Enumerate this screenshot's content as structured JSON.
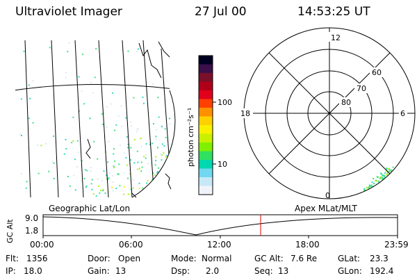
{
  "header": {
    "title": "Ultraviolet Imager",
    "date": "27 Jul 00",
    "time": "14:53:25 UT"
  },
  "colorbar": {
    "label": "photon cm⁻²s⁻¹",
    "ticks": [
      "100",
      "10"
    ],
    "colors": [
      "#000022",
      "#3a0f4a",
      "#7a0f2a",
      "#b00018",
      "#e0001c",
      "#ff4000",
      "#ff9000",
      "#ffd000",
      "#f8f000",
      "#c8f000",
      "#80f000",
      "#30e060",
      "#00d8b0",
      "#70d8f0",
      "#c8e8f8",
      "#f0f4fa"
    ]
  },
  "polar": {
    "mlt_labels": {
      "top": "12",
      "left": "18",
      "right": "6",
      "bottom": "0"
    },
    "lat_labels": [
      "60",
      "70",
      "80"
    ]
  },
  "orbit": {
    "label_left": "Geographic Lat/Lon",
    "label_right": "Apex MLat/MLT",
    "axis_label": "GC Alt",
    "y_ticks": [
      "9.0",
      "1.8"
    ],
    "x_ticks": [
      "00:00",
      "06:00",
      "12:00",
      "18:00",
      "23:59"
    ],
    "marker_color": "#e00000"
  },
  "info": {
    "row1": {
      "flt_label": "Flt:",
      "flt_value": "1356",
      "door_label": "Door:",
      "door_value": "Open",
      "mode_label": "Mode:",
      "mode_value": "Normal",
      "gcalt_label": "GC Alt:",
      "gcalt_value": "7.6 Re",
      "glat_label": "GLat:",
      "glat_value": "23.3"
    },
    "row2": {
      "ip_label": "IP:",
      "ip_value": "18.0",
      "gain_label": "Gain:",
      "gain_value": "13",
      "dsp_label": "Dsp:",
      "dsp_value": "2.0",
      "seq_label": "Seq:",
      "seq_value": "13",
      "glon_label": "GLon:",
      "glon_value": "192.4"
    }
  }
}
